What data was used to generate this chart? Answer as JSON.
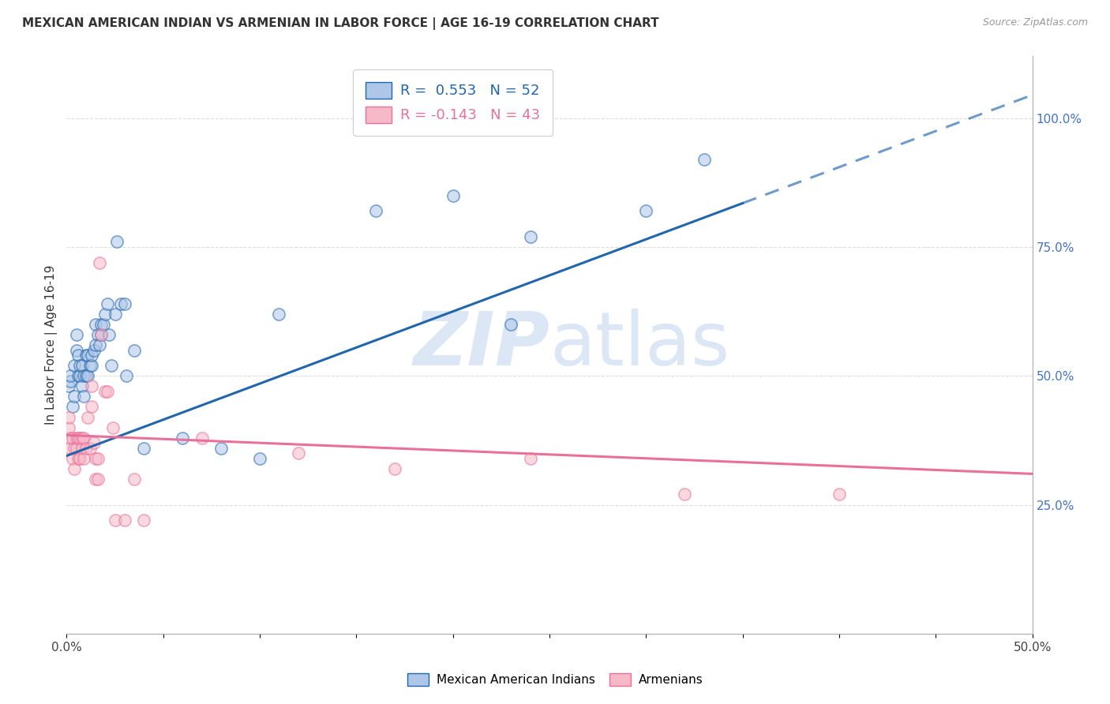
{
  "title": "MEXICAN AMERICAN INDIAN VS ARMENIAN IN LABOR FORCE | AGE 16-19 CORRELATION CHART",
  "source": "Source: ZipAtlas.com",
  "yaxis_label": "In Labor Force | Age 16-19",
  "legend_blue_label": "R =  0.553   N = 52",
  "legend_pink_label": "R = -0.143   N = 43",
  "blue_dots": [
    [
      0.001,
      0.48
    ],
    [
      0.002,
      0.49
    ],
    [
      0.002,
      0.5
    ],
    [
      0.003,
      0.44
    ],
    [
      0.004,
      0.46
    ],
    [
      0.004,
      0.52
    ],
    [
      0.005,
      0.55
    ],
    [
      0.005,
      0.58
    ],
    [
      0.006,
      0.5
    ],
    [
      0.006,
      0.54
    ],
    [
      0.007,
      0.5
    ],
    [
      0.007,
      0.52
    ],
    [
      0.008,
      0.48
    ],
    [
      0.008,
      0.52
    ],
    [
      0.009,
      0.46
    ],
    [
      0.009,
      0.5
    ],
    [
      0.01,
      0.5
    ],
    [
      0.01,
      0.54
    ],
    [
      0.011,
      0.5
    ],
    [
      0.011,
      0.54
    ],
    [
      0.012,
      0.52
    ],
    [
      0.013,
      0.52
    ],
    [
      0.013,
      0.54
    ],
    [
      0.014,
      0.55
    ],
    [
      0.015,
      0.56
    ],
    [
      0.015,
      0.6
    ],
    [
      0.016,
      0.58
    ],
    [
      0.017,
      0.56
    ],
    [
      0.018,
      0.58
    ],
    [
      0.018,
      0.6
    ],
    [
      0.019,
      0.6
    ],
    [
      0.02,
      0.62
    ],
    [
      0.021,
      0.64
    ],
    [
      0.022,
      0.58
    ],
    [
      0.023,
      0.52
    ],
    [
      0.025,
      0.62
    ],
    [
      0.026,
      0.76
    ],
    [
      0.028,
      0.64
    ],
    [
      0.03,
      0.64
    ],
    [
      0.031,
      0.5
    ],
    [
      0.035,
      0.55
    ],
    [
      0.04,
      0.36
    ],
    [
      0.06,
      0.38
    ],
    [
      0.08,
      0.36
    ],
    [
      0.1,
      0.34
    ],
    [
      0.11,
      0.62
    ],
    [
      0.16,
      0.82
    ],
    [
      0.2,
      0.85
    ],
    [
      0.23,
      0.6
    ],
    [
      0.24,
      0.77
    ],
    [
      0.3,
      0.82
    ],
    [
      0.33,
      0.92
    ]
  ],
  "pink_dots": [
    [
      0.001,
      0.4
    ],
    [
      0.001,
      0.42
    ],
    [
      0.002,
      0.36
    ],
    [
      0.002,
      0.38
    ],
    [
      0.003,
      0.34
    ],
    [
      0.003,
      0.38
    ],
    [
      0.004,
      0.32
    ],
    [
      0.004,
      0.36
    ],
    [
      0.005,
      0.36
    ],
    [
      0.005,
      0.38
    ],
    [
      0.006,
      0.34
    ],
    [
      0.006,
      0.38
    ],
    [
      0.007,
      0.34
    ],
    [
      0.007,
      0.38
    ],
    [
      0.008,
      0.36
    ],
    [
      0.008,
      0.38
    ],
    [
      0.009,
      0.34
    ],
    [
      0.009,
      0.38
    ],
    [
      0.01,
      0.36
    ],
    [
      0.011,
      0.42
    ],
    [
      0.012,
      0.36
    ],
    [
      0.013,
      0.44
    ],
    [
      0.013,
      0.48
    ],
    [
      0.014,
      0.37
    ],
    [
      0.015,
      0.34
    ],
    [
      0.015,
      0.3
    ],
    [
      0.016,
      0.34
    ],
    [
      0.016,
      0.3
    ],
    [
      0.017,
      0.72
    ],
    [
      0.018,
      0.58
    ],
    [
      0.02,
      0.47
    ],
    [
      0.021,
      0.47
    ],
    [
      0.024,
      0.4
    ],
    [
      0.025,
      0.22
    ],
    [
      0.03,
      0.22
    ],
    [
      0.035,
      0.3
    ],
    [
      0.04,
      0.22
    ],
    [
      0.07,
      0.38
    ],
    [
      0.12,
      0.35
    ],
    [
      0.17,
      0.32
    ],
    [
      0.24,
      0.34
    ],
    [
      0.32,
      0.27
    ],
    [
      0.4,
      0.27
    ]
  ],
  "blue_line_x": [
    0.0,
    0.5
  ],
  "blue_line_y": [
    0.345,
    1.045
  ],
  "blue_line_solid_end_x": 0.35,
  "pink_line_x": [
    0.0,
    0.5
  ],
  "pink_line_y": [
    0.385,
    0.31
  ],
  "blue_dot_color": "#aec6e8",
  "pink_dot_color": "#f7b8c8",
  "blue_line_color": "#2166ac",
  "pink_line_color": "#e8709a",
  "watermark_color": "#c5d8f0",
  "background_color": "#ffffff",
  "dot_size": 120,
  "dot_alpha": 0.55,
  "dot_edge_width": 1.2,
  "xlim": [
    0.0,
    0.5
  ],
  "ylim": [
    0.0,
    1.12
  ],
  "yticks": [
    0.25,
    0.5,
    0.75,
    1.0
  ],
  "ytick_labels": [
    "25.0%",
    "50.0%",
    "75.0%",
    "100.0%"
  ],
  "grid_color": "#dddddd",
  "grid_style": "--",
  "title_fontsize": 11,
  "source_fontsize": 9,
  "legend_fontsize": 13
}
